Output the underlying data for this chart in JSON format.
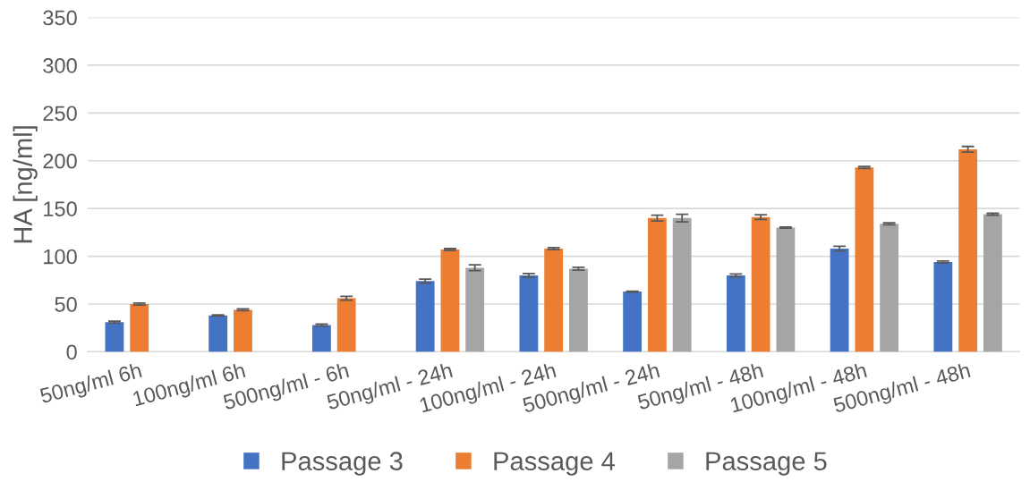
{
  "chart_data": {
    "type": "bar",
    "ylabel": "HA [ng/ml]",
    "categories": [
      "50ng/ml 6h",
      "100ng/ml 6h",
      "500ng/ml - 6h",
      "50ng/ml - 24h",
      "100ng/ml - 24h",
      "500ng/ml - 24h",
      "50ng/ml - 48h",
      "100ng/ml - 48h",
      "500ng/ml - 48h"
    ],
    "series": [
      {
        "name": "Passage 3",
        "color": "#4472c4",
        "values": [
          31,
          38,
          28,
          74,
          80,
          63,
          80,
          108,
          94
        ],
        "errors": [
          1,
          0.5,
          1,
          2,
          2,
          0.5,
          1.5,
          2.5,
          1
        ]
      },
      {
        "name": "Passage 4",
        "color": "#ed7d31",
        "values": [
          50,
          44,
          56,
          107,
          108,
          140,
          141,
          193,
          212
        ],
        "errors": [
          1,
          1,
          2,
          1,
          1,
          3,
          2.5,
          1,
          3
        ]
      },
      {
        "name": "Passage 5",
        "color": "#a5a5a5",
        "values": [
          null,
          null,
          null,
          88,
          87,
          140,
          130,
          134,
          144
        ],
        "errors": [
          null,
          null,
          null,
          3,
          1.5,
          4,
          0.5,
          1,
          1
        ]
      }
    ],
    "ylim": [
      0,
      350
    ],
    "yticks": [
      0,
      50,
      100,
      150,
      200,
      250,
      300,
      350
    ],
    "grid": "y",
    "legend": "bottom"
  }
}
